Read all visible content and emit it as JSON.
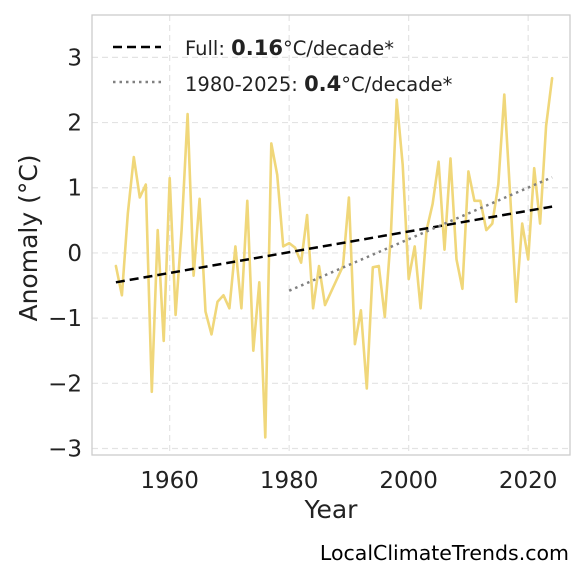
{
  "chart_data": {
    "type": "line",
    "xlabel": "Year",
    "ylabel": "Anomaly (°C)",
    "xlim": [
      1947,
      2027
    ],
    "ylim": [
      -3.1,
      3.65
    ],
    "xticks": [
      "1960",
      "1980",
      "2000",
      "2020"
    ],
    "xtick_values": [
      1960,
      1980,
      2000,
      2020
    ],
    "yticks": [
      "3",
      "2",
      "1",
      "0",
      "−1",
      "−2",
      "−3"
    ],
    "ytick_values": [
      3,
      2,
      1,
      0,
      -1,
      -2,
      -3
    ],
    "grid": true,
    "legend_position": "top-left",
    "series": [
      {
        "name": "",
        "kind": "line",
        "color": "#f0d77a",
        "x": [
          1951,
          1952,
          1953,
          1954,
          1955,
          1956,
          1957,
          1958,
          1959,
          1960,
          1961,
          1962,
          1963,
          1964,
          1965,
          1966,
          1967,
          1968,
          1969,
          1970,
          1971,
          1972,
          1973,
          1974,
          1975,
          1976,
          1977,
          1978,
          1979,
          1980,
          1981,
          1982,
          1983,
          1984,
          1985,
          1986,
          1987,
          1988,
          1989,
          1990,
          1991,
          1992,
          1993,
          1994,
          1995,
          1996,
          1997,
          1998,
          1999,
          2000,
          2001,
          2002,
          2003,
          2004,
          2005,
          2006,
          2007,
          2008,
          2009,
          2010,
          2011,
          2012,
          2013,
          2014,
          2015,
          2016,
          2017,
          2018,
          2019,
          2020,
          2021,
          2022,
          2023,
          2024
        ],
        "y": [
          -0.2,
          -0.65,
          0.6,
          1.47,
          0.85,
          1.05,
          -2.13,
          0.35,
          -1.35,
          1.15,
          -0.95,
          0.35,
          2.13,
          -0.35,
          0.83,
          -0.9,
          -1.25,
          -0.75,
          -0.65,
          -0.85,
          0.1,
          -0.85,
          0.8,
          -1.5,
          -0.45,
          -2.83,
          1.68,
          1.2,
          0.1,
          0.15,
          0.08,
          -0.15,
          0.58,
          -0.85,
          -0.2,
          -0.8,
          -0.6,
          -0.4,
          -0.2,
          0.85,
          -1.4,
          -0.88,
          -2.08,
          -0.22,
          -0.2,
          -0.98,
          0.25,
          2.35,
          1.35,
          -0.4,
          0.1,
          -0.85,
          0.35,
          0.75,
          1.4,
          0.05,
          1.45,
          -0.1,
          -0.55,
          1.25,
          0.8,
          0.8,
          0.35,
          0.45,
          1.05,
          2.43,
          0.85,
          -0.75,
          0.45,
          -0.1,
          1.3,
          0.45,
          1.95,
          2.68
        ]
      },
      {
        "name": "Full",
        "kind": "trend",
        "style": "dashed",
        "color": "#000000",
        "rate_label": "0.16",
        "x": [
          1951,
          2024
        ],
        "y": [
          -0.45,
          0.71
        ]
      },
      {
        "name": "1980-2025",
        "kind": "trend",
        "style": "dotted",
        "color": "#808080",
        "rate_label": "0.4",
        "x": [
          1980,
          2024
        ],
        "y": [
          -0.58,
          1.16
        ]
      }
    ],
    "legend": [
      {
        "prefix": "Full: ",
        "value": "0.16",
        "suffix": "°C/decade*"
      },
      {
        "prefix": "1980-2025: ",
        "value": "0.4",
        "suffix": "°C/decade*"
      }
    ]
  },
  "watermark": "LocalClimateTrends.com"
}
